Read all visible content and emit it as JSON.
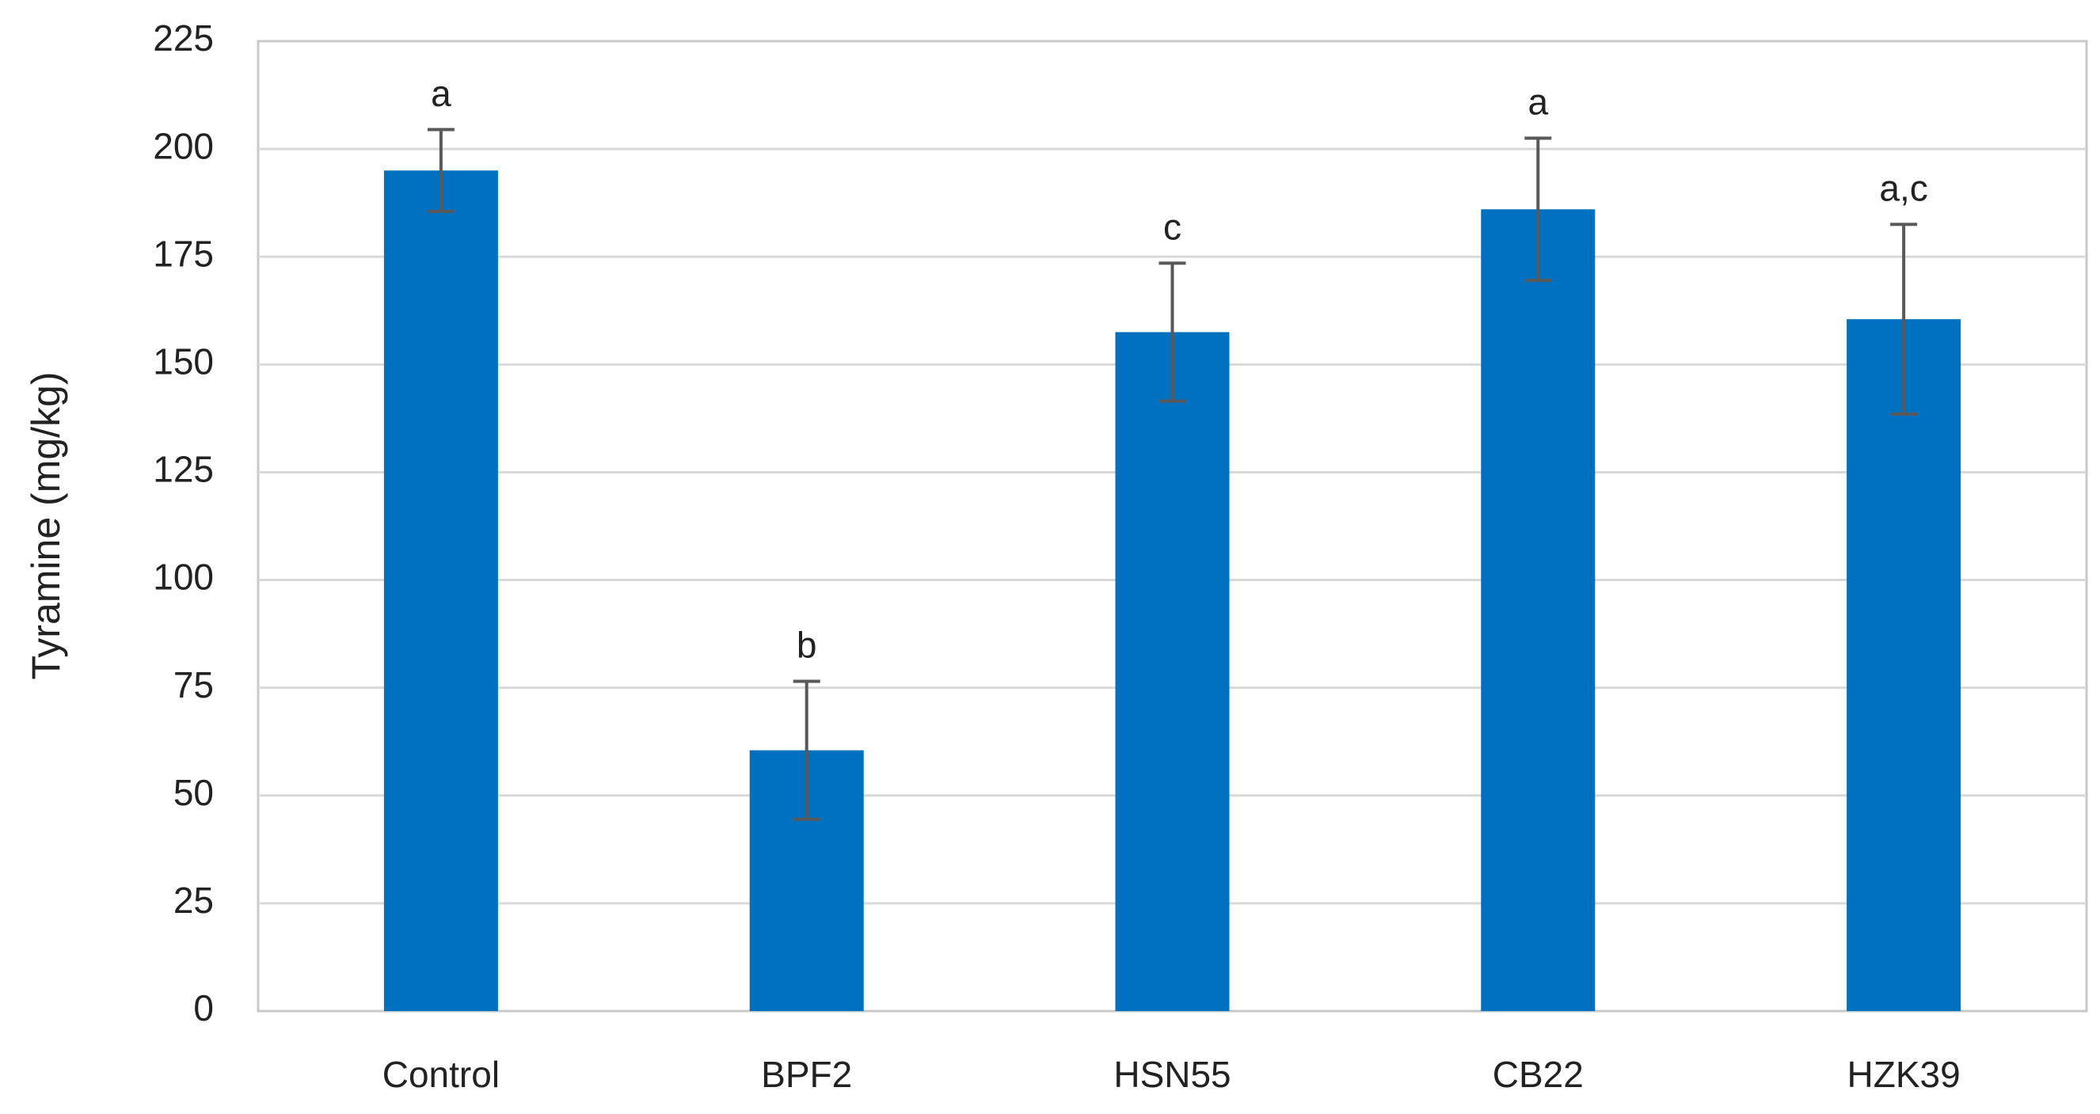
{
  "chart_data": {
    "type": "bar",
    "ylabel": "Tyramine (mg/kg)",
    "categories": [
      "Control",
      "BPF2",
      "HSN55",
      "CB22",
      "HZK39"
    ],
    "values": [
      195,
      60.5,
      157.5,
      186,
      160.5
    ],
    "errors": [
      9.5,
      16,
      16,
      16.5,
      22
    ],
    "annotations": [
      "a",
      "b",
      "c",
      "a",
      "a,c"
    ],
    "color": "#0070c0",
    "error_color": "#595959",
    "ylim": [
      0,
      225
    ],
    "yticks": [
      0,
      25,
      50,
      75,
      100,
      125,
      150,
      175,
      200,
      225
    ],
    "grid": true
  }
}
